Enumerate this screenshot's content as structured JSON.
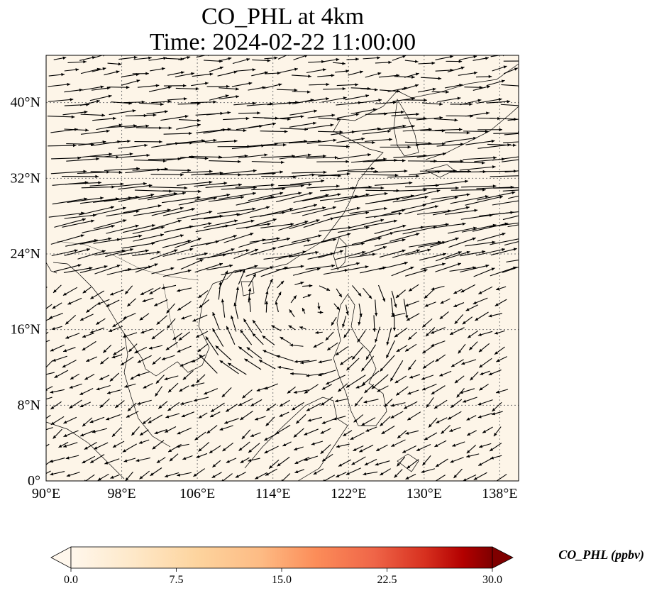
{
  "title": {
    "line1": "CO_PHL at 4km",
    "line2": "Time: 2024-02-22 11:00:00"
  },
  "map": {
    "projection": "PlateCarree",
    "lon_range": [
      90,
      140
    ],
    "lat_range": [
      0,
      45
    ],
    "background_color": "#fdf5e8",
    "gridlines": "dotted",
    "lon_ticks": [
      {
        "value": 90,
        "label": "90°E"
      },
      {
        "value": 98,
        "label": "98°E"
      },
      {
        "value": 106,
        "label": "106°E"
      },
      {
        "value": 114,
        "label": "114°E"
      },
      {
        "value": 122,
        "label": "122°E"
      },
      {
        "value": 130,
        "label": "130°E"
      },
      {
        "value": 138,
        "label": "138°E"
      }
    ],
    "lat_ticks": [
      {
        "value": 0,
        "label": "0°"
      },
      {
        "value": 8,
        "label": "8°N"
      },
      {
        "value": 16,
        "label": "16°N"
      },
      {
        "value": 24,
        "label": "24°N"
      },
      {
        "value": 32,
        "label": "32°N"
      },
      {
        "value": 40,
        "label": "40°N"
      }
    ]
  },
  "colorbar": {
    "label": "CO_PHL (ppbv)",
    "min": 0,
    "max": 30,
    "colormap": "OrRd",
    "extend": "both",
    "ticks": [
      {
        "value": 0,
        "label": "0.0"
      },
      {
        "value": 7.5,
        "label": "7.5"
      },
      {
        "value": 15,
        "label": "15.0"
      },
      {
        "value": 22.5,
        "label": "22.5"
      },
      {
        "value": 30,
        "label": "30.0"
      }
    ]
  }
}
